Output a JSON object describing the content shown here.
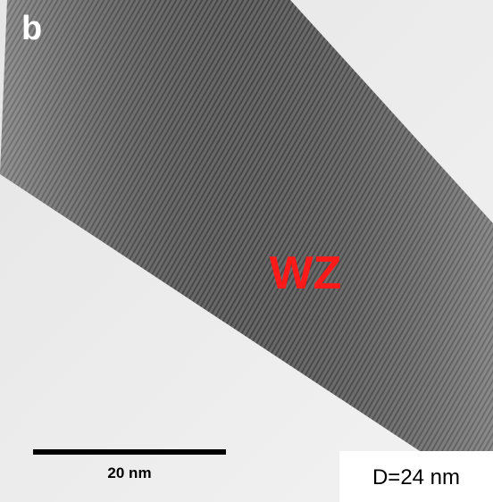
{
  "panel_label": "b",
  "phase_label": "WZ",
  "scale_bar": {
    "label": "20 nm"
  },
  "diameter_label": "D=24 nm"
}
